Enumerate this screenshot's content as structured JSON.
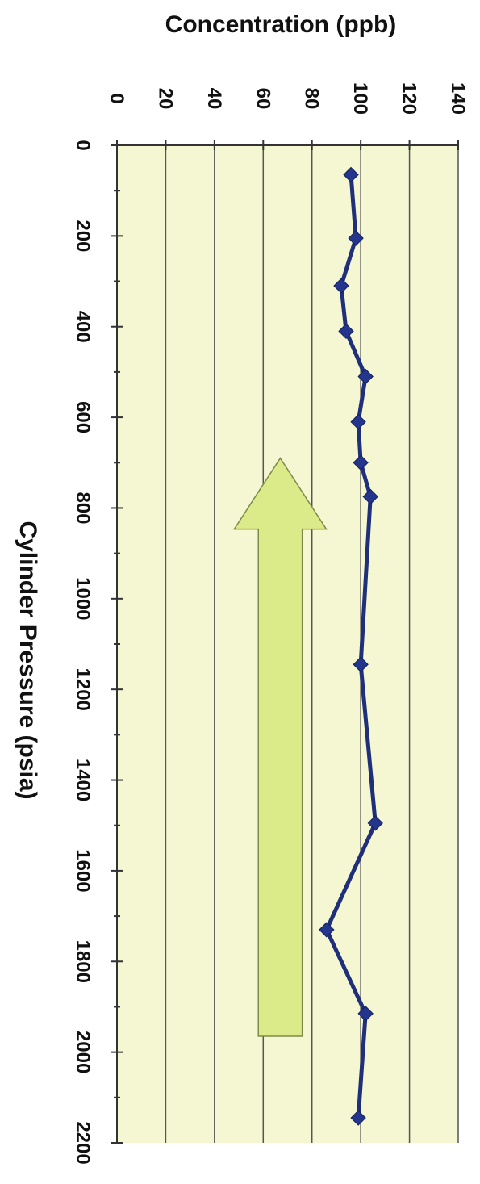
{
  "chart_data": {
    "type": "line",
    "orientation": "rotated-90-clockwise",
    "xlabel": "Cylinder Pressure (psia)",
    "ylabel": "Concentration (ppb)",
    "xlim": [
      0,
      2200
    ],
    "ylim": [
      0,
      140
    ],
    "x_ticks": [
      0,
      200,
      400,
      600,
      800,
      1000,
      1200,
      1400,
      1600,
      1800,
      2000,
      2200
    ],
    "y_ticks": [
      0,
      20,
      40,
      60,
      80,
      100,
      120,
      140
    ],
    "grid": true,
    "series": [
      {
        "x": [
          65,
          205,
          310,
          410,
          510,
          610,
          700,
          775,
          1145,
          1495,
          1730,
          1915,
          2145
        ],
        "y": [
          96,
          98,
          92,
          94,
          102,
          99,
          100,
          104,
          100,
          106,
          86,
          102,
          99
        ]
      }
    ],
    "annotation_arrow": {
      "direction": "toward-lower-pressure",
      "from_x": 1965,
      "to_x": 690,
      "concentration_band": [
        58,
        76
      ],
      "color": "#dceb8a"
    },
    "colors": {
      "plot_background": "#f4f7d2",
      "line": "#1f2f7a",
      "marker": "#23358c",
      "gridline": "#555555"
    }
  }
}
